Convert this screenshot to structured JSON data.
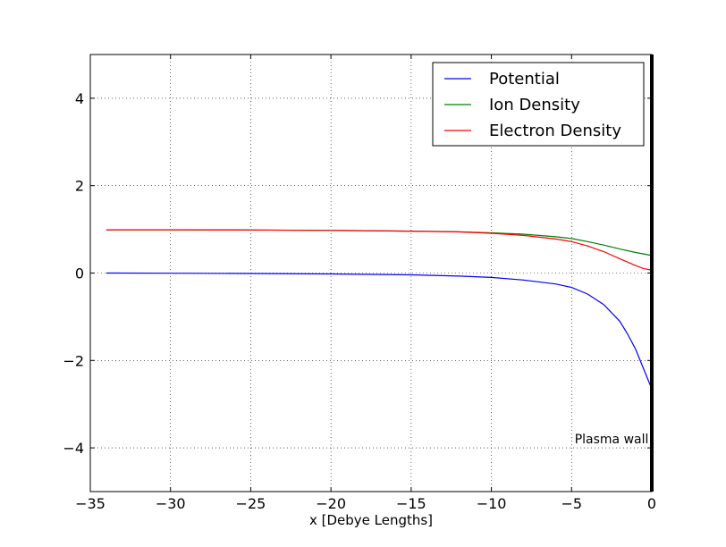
{
  "chart_data": {
    "type": "line",
    "title": "",
    "xlabel": "x [Debye Lengths]",
    "ylabel": "",
    "xlim": [
      -35,
      0
    ],
    "ylim": [
      -5,
      5
    ],
    "xticks": [
      -35,
      -30,
      -25,
      -20,
      -15,
      -10,
      -5,
      0
    ],
    "yticks": [
      -4,
      -2,
      0,
      2,
      4
    ],
    "xtick_labels": [
      "−35",
      "−30",
      "−25",
      "−20",
      "−15",
      "−10",
      "−5",
      "0"
    ],
    "ytick_labels": [
      "−4",
      "−2",
      "0",
      "2",
      "4"
    ],
    "grid": true,
    "legend_position": "top-right",
    "series": [
      {
        "name": "Potential",
        "color": "#0000ff",
        "x": [
          -34,
          -30,
          -25,
          -20,
          -15,
          -12,
          -10,
          -8,
          -6,
          -5,
          -4,
          -3,
          -2,
          -1.5,
          -1,
          -0.5,
          0
        ],
        "y": [
          0.0,
          -0.005,
          -0.01,
          -0.02,
          -0.04,
          -0.07,
          -0.1,
          -0.16,
          -0.25,
          -0.33,
          -0.48,
          -0.72,
          -1.1,
          -1.4,
          -1.75,
          -2.2,
          -2.65
        ]
      },
      {
        "name": "Ion Density",
        "color": "#008000",
        "x": [
          -34,
          -30,
          -25,
          -20,
          -15,
          -12,
          -10,
          -8,
          -6,
          -5,
          -4,
          -3,
          -2,
          -1,
          0
        ],
        "y": [
          0.99,
          0.99,
          0.985,
          0.975,
          0.96,
          0.945,
          0.92,
          0.89,
          0.83,
          0.79,
          0.72,
          0.64,
          0.55,
          0.47,
          0.4
        ]
      },
      {
        "name": "Electron Density",
        "color": "#ff0000",
        "x": [
          -34,
          -30,
          -25,
          -20,
          -15,
          -12,
          -10,
          -8,
          -6,
          -5,
          -4,
          -3,
          -2,
          -1.5,
          -1,
          -0.5,
          0
        ],
        "y": [
          0.99,
          0.99,
          0.985,
          0.975,
          0.96,
          0.94,
          0.91,
          0.86,
          0.78,
          0.72,
          0.62,
          0.49,
          0.33,
          0.25,
          0.17,
          0.1,
          0.07
        ]
      }
    ],
    "annotations": [
      {
        "text": "Plasma wall",
        "x": -0.2,
        "y": -3.9
      }
    ],
    "wall_x": 0
  }
}
